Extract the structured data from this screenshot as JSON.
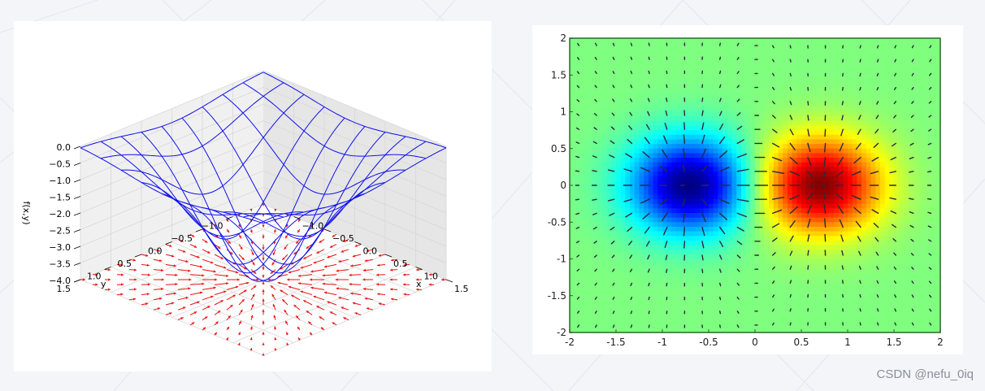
{
  "chart_data": [
    {
      "type": "surface3d",
      "zlabel": "f(x,y)",
      "xlabel": "x",
      "ylabel": "y",
      "z_ticks": [
        "0.0",
        "−0.5",
        "−1.0",
        "−1.5",
        "−2.0",
        "−2.5",
        "−3.0",
        "−3.5",
        "−4.0"
      ],
      "z_values": [
        0,
        -0.5,
        -1.0,
        -1.5,
        -2.0,
        -2.5,
        -3.0,
        -3.5,
        -4.0
      ],
      "zlim": [
        -4,
        0
      ],
      "x_ticks": [
        "−1.0",
        "−0.5",
        "0.0",
        "0.5",
        "1.0",
        "1.5"
      ],
      "x_values": [
        -1.0,
        -0.5,
        0.0,
        0.5,
        1.0,
        1.5
      ],
      "y_ticks": [
        "−1.0",
        "−0.5",
        "0.0",
        "0.5",
        "1.0",
        "1.5"
      ],
      "y_values": [
        -1.0,
        -0.5,
        0.0,
        0.5,
        1.0,
        1.5
      ],
      "xlim": [
        -1.5,
        1.5
      ],
      "ylim": [
        -1.5,
        1.5
      ],
      "surface": "z = -4 * exp(-(x^2 + y^2))",
      "wireframe_color": "#1010ee",
      "quiver_color": "#ee1111",
      "quiver_field": "gradient of f on the plane z = -4"
    },
    {
      "type": "heatmap",
      "x_ticks": [
        "-2",
        "-1.5",
        "-1",
        "-0.5",
        "0",
        "0.5",
        "1",
        "1.5",
        "2"
      ],
      "x_values": [
        -2,
        -1.5,
        -1,
        -0.5,
        0,
        0.5,
        1,
        1.5,
        2
      ],
      "y_ticks": [
        "2",
        "1.5",
        "1",
        "0.5",
        "0",
        "-0.5",
        "-1",
        "-1.5",
        "-2"
      ],
      "y_values": [
        2,
        1.5,
        1,
        0.5,
        0,
        -0.5,
        -1,
        -1.5,
        -2
      ],
      "xlim": [
        -2,
        2
      ],
      "ylim": [
        -2,
        2
      ],
      "minimum": {
        "x": -0.7,
        "y": 0
      },
      "maximum": {
        "x": 0.7,
        "y": 0
      },
      "colormap": "jet",
      "quiver_color": "#2a2a3a"
    }
  ],
  "watermark": "CSDN @nefu_0iq"
}
